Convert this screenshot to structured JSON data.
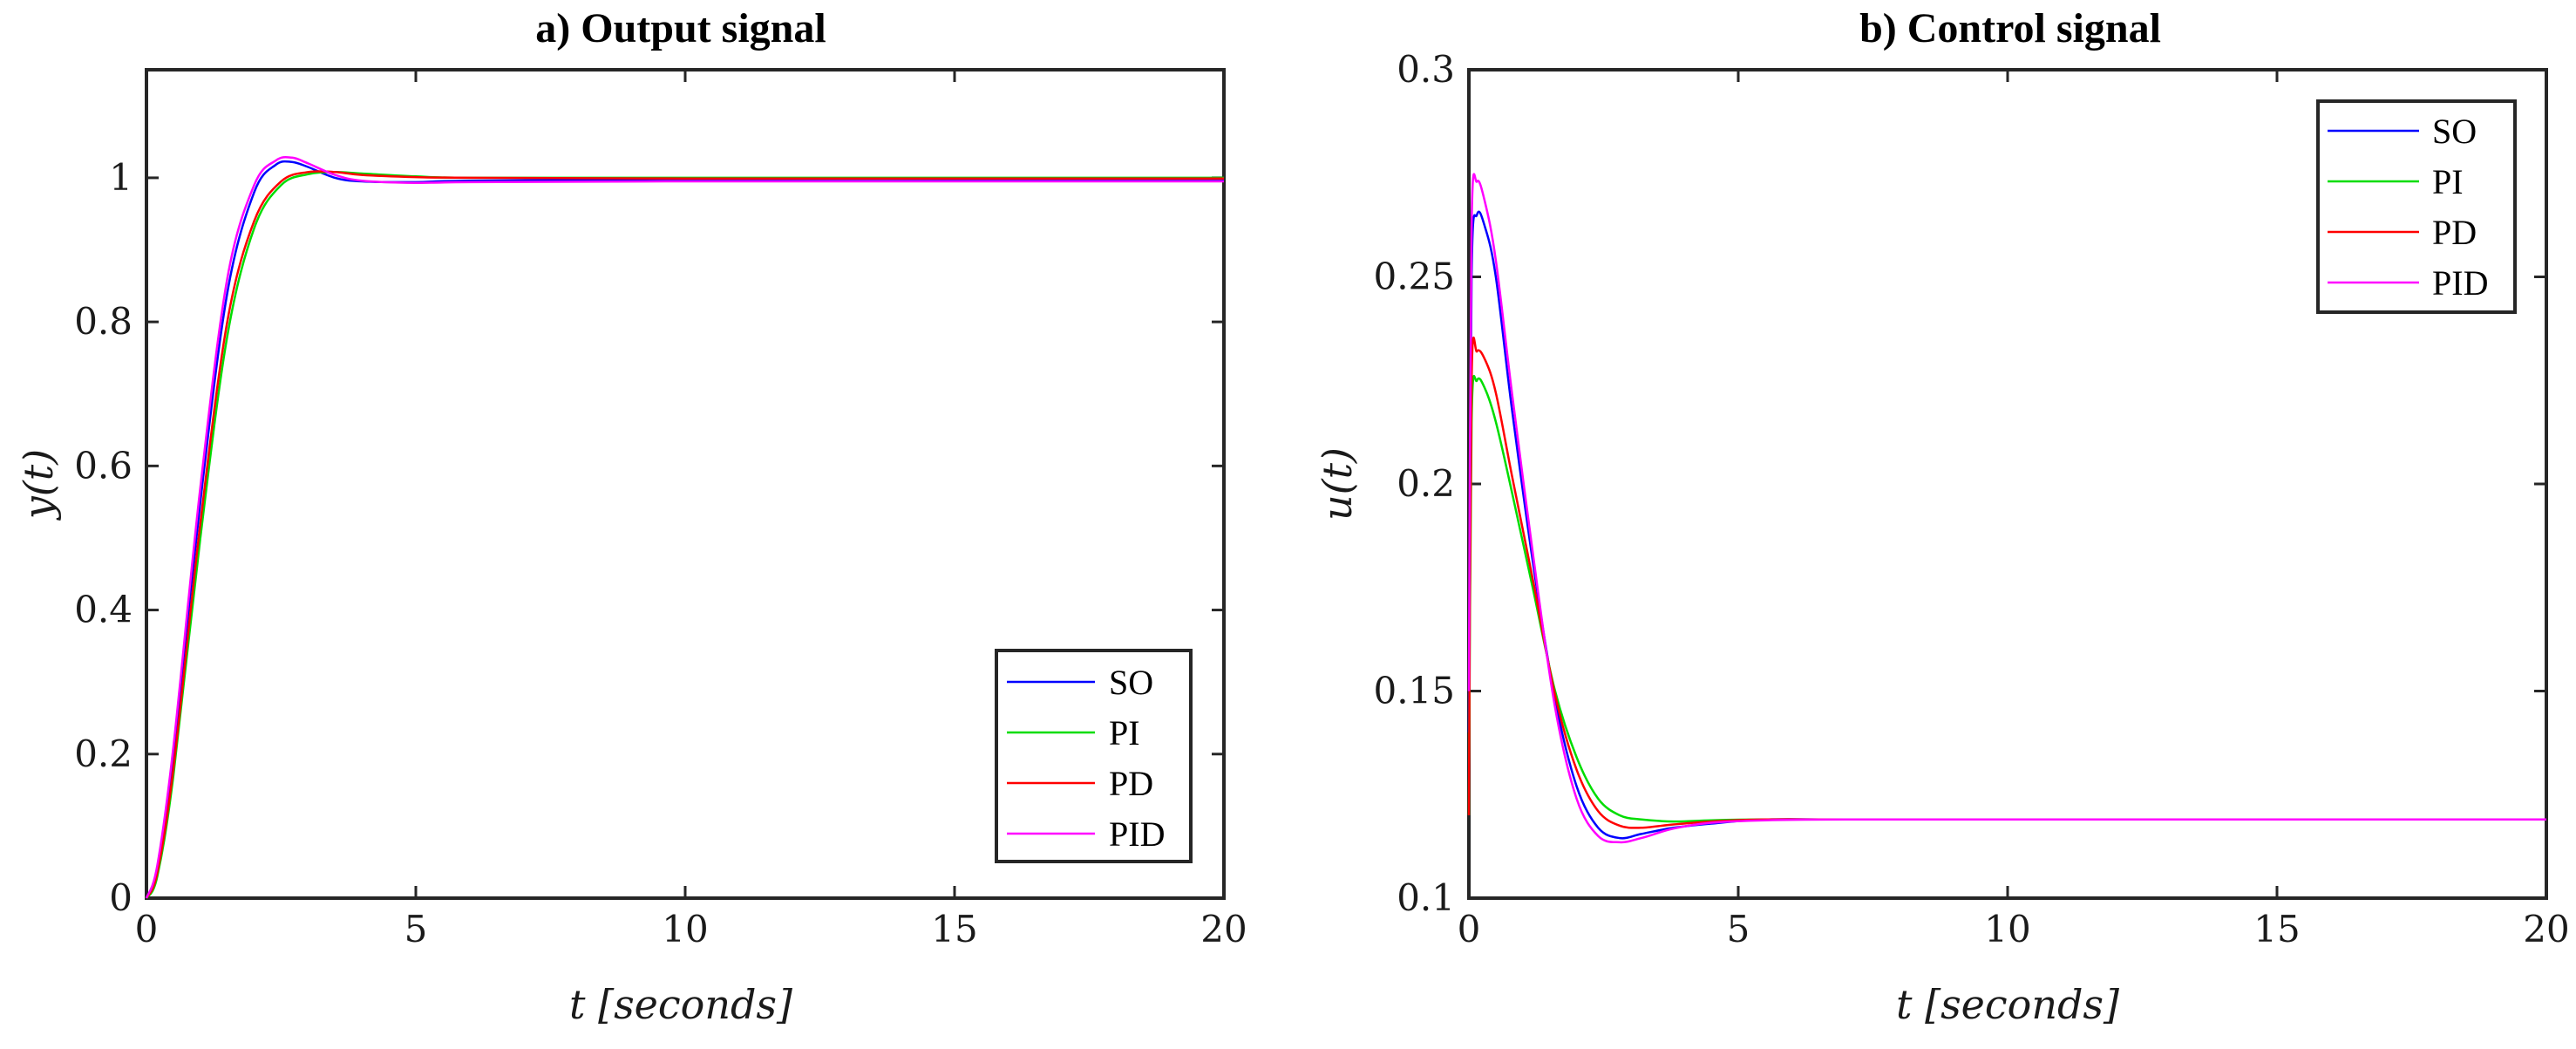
{
  "chart_data": [
    {
      "type": "line",
      "title": "a) Output signal",
      "xlabel": "t [seconds]",
      "ylabel": "y(t)",
      "xlim": [
        0,
        20
      ],
      "ylim": [
        0,
        1.15
      ],
      "xticks": [
        0,
        5,
        10,
        15,
        20
      ],
      "xtick_labels": [
        "0",
        "5",
        "10",
        "15",
        "20"
      ],
      "yticks": [
        0,
        0.2,
        0.4,
        0.6,
        0.8,
        1
      ],
      "ytick_labels": [
        "0",
        "0.2",
        "0.4",
        "0.6",
        "0.8",
        "1"
      ],
      "legend_position": "bottom-right",
      "series": [
        {
          "name": "SO",
          "color": "#0000ff",
          "x": [
            0,
            0.2,
            0.5,
            1,
            1.5,
            2,
            2.4,
            2.7,
            3,
            3.5,
            4,
            5,
            6,
            10,
            15,
            20
          ],
          "y": [
            0,
            0.04,
            0.2,
            0.55,
            0.84,
            0.98,
            1.018,
            1.022,
            1.015,
            1.0,
            0.995,
            0.994,
            0.996,
            0.998,
            0.998,
            0.998
          ]
        },
        {
          "name": "PI",
          "color": "#00dd00",
          "x": [
            0,
            0.2,
            0.5,
            1,
            1.5,
            2,
            2.5,
            3,
            3.5,
            4,
            5,
            6,
            10,
            15,
            20
          ],
          "y": [
            0,
            0.03,
            0.17,
            0.5,
            0.78,
            0.93,
            0.99,
            1.005,
            1.008,
            1.006,
            1.002,
            1.0,
            1.0,
            1.0,
            1.0
          ]
        },
        {
          "name": "PD",
          "color": "#ff0000",
          "x": [
            0,
            0.2,
            0.5,
            1,
            1.5,
            2,
            2.5,
            3,
            3.5,
            4,
            5,
            6,
            10,
            15,
            20
          ],
          "y": [
            0,
            0.035,
            0.18,
            0.52,
            0.8,
            0.94,
            0.995,
            1.008,
            1.008,
            1.004,
            1.001,
            1.0,
            0.999,
            0.999,
            0.999
          ]
        },
        {
          "name": "PID",
          "color": "#ff00ff",
          "x": [
            0,
            0.2,
            0.5,
            1,
            1.5,
            2,
            2.4,
            2.7,
            3,
            3.5,
            4,
            5,
            6,
            10,
            15,
            20
          ],
          "y": [
            0,
            0.045,
            0.21,
            0.57,
            0.86,
            0.99,
            1.024,
            1.028,
            1.02,
            1.004,
            0.996,
            0.993,
            0.994,
            0.995,
            0.995,
            0.995
          ]
        }
      ]
    },
    {
      "type": "line",
      "title": "b) Control signal",
      "xlabel": "t [seconds]",
      "ylabel": "u(t)",
      "xlim": [
        0,
        20
      ],
      "ylim": [
        0.1,
        0.3
      ],
      "xticks": [
        0,
        5,
        10,
        15,
        20
      ],
      "xtick_labels": [
        "0",
        "5",
        "10",
        "15",
        "20"
      ],
      "yticks": [
        0.1,
        0.15,
        0.2,
        0.25,
        0.3
      ],
      "ytick_labels": [
        "0.1",
        "0.15",
        "0.2",
        "0.25",
        "0.3"
      ],
      "legend_position": "top-right",
      "series": [
        {
          "name": "SO",
          "color": "#0000ff",
          "x": [
            0,
            0.05,
            0.15,
            0.3,
            0.5,
            0.8,
            1.2,
            1.6,
            2,
            2.4,
            2.8,
            3.2,
            3.8,
            4.5,
            5.5,
            7,
            10,
            15,
            20
          ],
          "y": [
            0.14,
            0.25,
            0.265,
            0.262,
            0.25,
            0.218,
            0.18,
            0.148,
            0.127,
            0.117,
            0.1145,
            0.1155,
            0.117,
            0.118,
            0.119,
            0.119,
            0.119,
            0.119,
            0.119
          ]
        },
        {
          "name": "PI",
          "color": "#00dd00",
          "x": [
            0,
            0.05,
            0.15,
            0.3,
            0.5,
            0.8,
            1.2,
            1.6,
            2,
            2.4,
            2.8,
            3.2,
            3.8,
            4.5,
            5.5,
            7,
            10,
            15,
            20
          ],
          "y": [
            0.12,
            0.215,
            0.225,
            0.223,
            0.215,
            0.198,
            0.174,
            0.15,
            0.134,
            0.124,
            0.12,
            0.119,
            0.1185,
            0.1188,
            0.119,
            0.119,
            0.119,
            0.119,
            0.119
          ]
        },
        {
          "name": "PD",
          "color": "#ff0000",
          "x": [
            0,
            0.05,
            0.15,
            0.3,
            0.5,
            0.8,
            1.2,
            1.6,
            2,
            2.4,
            2.8,
            3.2,
            3.8,
            4.5,
            5.5,
            7,
            10,
            15,
            20
          ],
          "y": [
            0.12,
            0.225,
            0.232,
            0.23,
            0.222,
            0.202,
            0.176,
            0.149,
            0.131,
            0.121,
            0.1175,
            0.117,
            0.1178,
            0.1185,
            0.119,
            0.119,
            0.119,
            0.119,
            0.119
          ]
        },
        {
          "name": "PID",
          "color": "#ff00ff",
          "x": [
            0,
            0.05,
            0.15,
            0.3,
            0.5,
            0.8,
            1.2,
            1.6,
            2,
            2.4,
            2.8,
            3.2,
            3.8,
            4.5,
            5.5,
            7,
            10,
            15,
            20
          ],
          "y": [
            0.15,
            0.262,
            0.273,
            0.268,
            0.254,
            0.222,
            0.182,
            0.146,
            0.124,
            0.115,
            0.1135,
            0.1145,
            0.1168,
            0.1182,
            0.1188,
            0.119,
            0.119,
            0.119,
            0.119
          ]
        }
      ]
    }
  ]
}
